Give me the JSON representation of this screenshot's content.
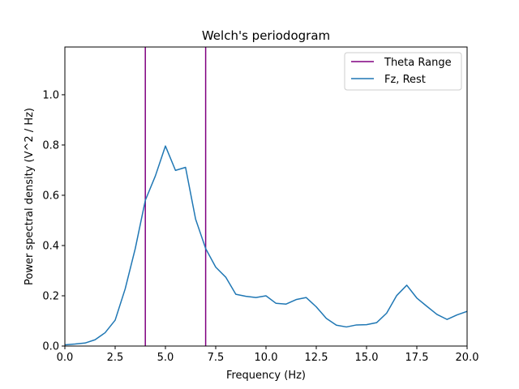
{
  "chart_data": {
    "type": "line",
    "title": "Welch's periodogram",
    "xlabel": "Frequency (Hz)",
    "ylabel": "Power spectral density (V^2 / Hz)",
    "xlim": [
      0,
      20
    ],
    "ylim": [
      0,
      1.19
    ],
    "xticks": [
      0,
      2.5,
      5,
      7.5,
      10,
      12.5,
      15,
      17.5,
      20
    ],
    "xtick_labels": [
      "0.0",
      "2.5",
      "5.0",
      "7.5",
      "10.0",
      "12.5",
      "15.0",
      "17.5",
      "20.0"
    ],
    "yticks": [
      0,
      0.2,
      0.4,
      0.6,
      0.8,
      1.0
    ],
    "ytick_labels": [
      "0.0",
      "0.2",
      "0.4",
      "0.6",
      "0.8",
      "1.0"
    ],
    "grid": false,
    "legend_position": "top-right",
    "vlines": {
      "name": "Theta Range",
      "color": "#800080",
      "x": [
        4,
        7
      ]
    },
    "series": [
      {
        "name": "Fz, Rest",
        "color": "#1f77b4",
        "x": [
          0,
          0.5,
          1,
          1.5,
          2,
          2.5,
          3,
          3.5,
          4,
          4.5,
          5,
          5.5,
          6,
          6.5,
          7,
          7.5,
          8,
          8.5,
          9,
          9.5,
          10,
          10.5,
          11,
          11.5,
          12,
          12.5,
          13,
          13.5,
          14,
          14.5,
          15,
          15.5,
          16,
          16.5,
          17,
          17.5,
          18,
          18.5,
          19,
          19.5,
          20
        ],
        "y": [
          0.005,
          0.008,
          0.012,
          0.025,
          0.053,
          0.103,
          0.228,
          0.388,
          0.58,
          0.677,
          0.796,
          0.699,
          0.711,
          0.505,
          0.388,
          0.314,
          0.274,
          0.206,
          0.198,
          0.193,
          0.2,
          0.17,
          0.167,
          0.185,
          0.193,
          0.156,
          0.11,
          0.083,
          0.076,
          0.084,
          0.085,
          0.093,
          0.131,
          0.201,
          0.242,
          0.191,
          0.158,
          0.126,
          0.106,
          0.124,
          0.138
        ]
      }
    ]
  }
}
